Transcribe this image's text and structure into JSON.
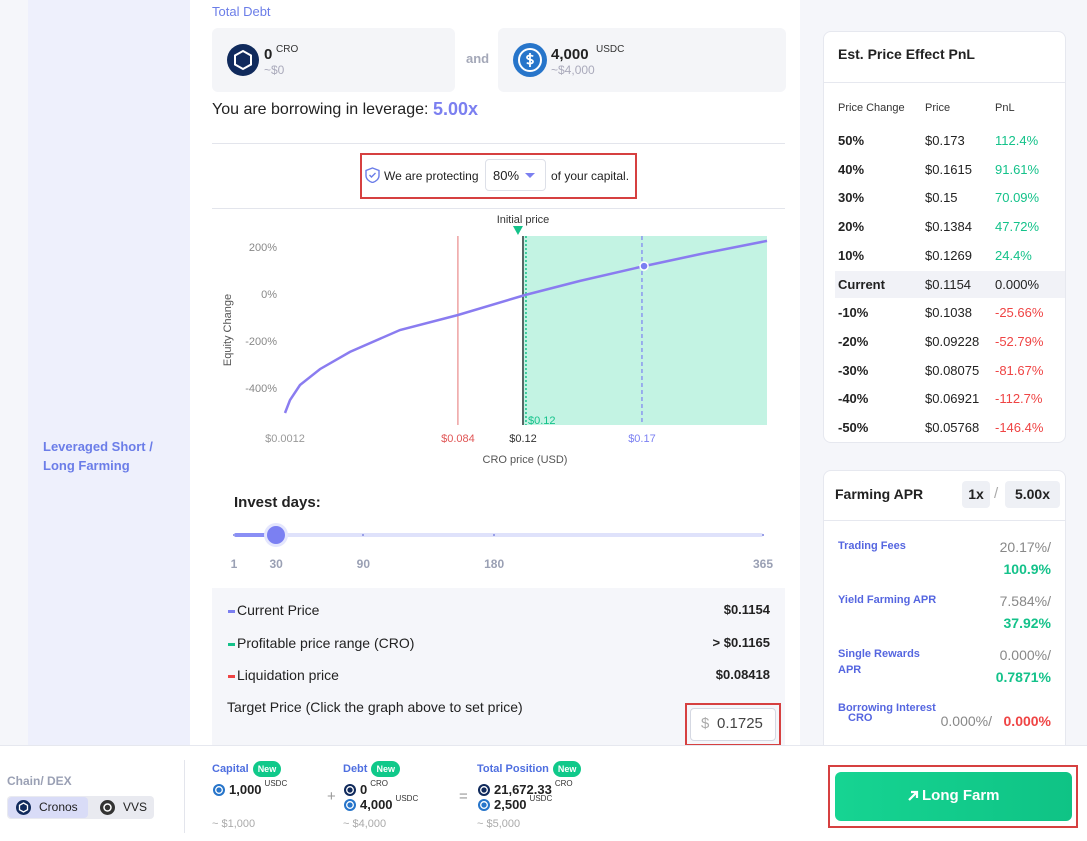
{
  "sidebar": {
    "label": "Leveraged Short / Long Farming"
  },
  "debt": {
    "title": "Total Debt",
    "joiner": "and",
    "tokens": [
      {
        "amount": "0",
        "symbol": "CRO",
        "usd": "~$0"
      },
      {
        "amount": "4,000",
        "symbol": "USDC",
        "usd": "~$4,000"
      }
    ]
  },
  "leverage": {
    "label": "You are borrowing in leverage:",
    "value": "5.00x"
  },
  "protection": {
    "prefix": "We are protecting",
    "value": "80%",
    "suffix": "of your capital."
  },
  "chart": {
    "initial_label": "Initial price",
    "marker_label": "$0.12",
    "x_label": "CRO price (USD)",
    "y_label": "Equity Change",
    "xlim": [
      0.0012,
      0.2325
    ],
    "ylim": [
      -557,
      247
    ],
    "yticks": [
      {
        "value": 200,
        "label": "200%"
      },
      {
        "value": 0,
        "label": "0%"
      },
      {
        "value": -200,
        "label": "-200%"
      },
      {
        "value": -400,
        "label": "-400%"
      }
    ],
    "xticks": [
      {
        "value": 0.0012,
        "label": "$0.0012"
      },
      {
        "value": 0.08418,
        "label": "$0.084"
      },
      {
        "value": 0.1154,
        "label": "$0.12"
      },
      {
        "value": 0.1725,
        "label": "$0.17"
      }
    ],
    "curve": {
      "x": [
        0.0012,
        0.0036,
        0.0084,
        0.018,
        0.0324,
        0.0564,
        0.0842,
        0.1164,
        0.1428,
        0.1735,
        0.2004,
        0.2325
      ],
      "y": [
        -506,
        -451,
        -387,
        -319,
        -246,
        -153,
        -89,
        -4,
        56,
        119,
        170,
        226
      ]
    },
    "colors": {
      "curve": "#8a7cf0",
      "profit": "#c3f3e3",
      "liquidation": "#e57373",
      "target": "#7b80f2"
    }
  },
  "invest": {
    "title": "Invest days:",
    "ticks": [
      1,
      30,
      90,
      180,
      365
    ],
    "value": 30
  },
  "summary": {
    "rows": [
      {
        "label": "Current Price",
        "value": "$0.1154",
        "color": "#7b7ff0"
      },
      {
        "label": "Profitable price range (CRO)",
        "value": "> $0.1165",
        "color": "#14c28a"
      },
      {
        "label": "Liquidation price",
        "value": "$0.08418",
        "color": "#ef4444"
      }
    ],
    "target": {
      "label": "Target Price (Click the graph above to set price)",
      "currency": "$",
      "value": "0.1725"
    }
  },
  "pnl": {
    "title": "Est. Price Effect PnL",
    "headers": [
      "Price Change",
      "Price",
      "PnL"
    ],
    "rows": [
      [
        "50%",
        "$0.173",
        "112.4%"
      ],
      [
        "40%",
        "$0.1615",
        "91.61%"
      ],
      [
        "30%",
        "$0.15",
        "70.09%"
      ],
      [
        "20%",
        "$0.1384",
        "47.72%"
      ],
      [
        "10%",
        "$0.1269",
        "24.4%"
      ],
      [
        "Current",
        "$0.1154",
        "0.000%"
      ],
      [
        "-10%",
        "$0.1038",
        "-25.66%"
      ],
      [
        "-20%",
        "$0.09228",
        "-52.79%"
      ],
      [
        "-30%",
        "$0.08075",
        "-81.67%"
      ],
      [
        "-40%",
        "$0.06921",
        "-112.7%"
      ],
      [
        "-50%",
        "$0.05768",
        "-146.4%"
      ]
    ]
  },
  "apr": {
    "title": "Farming APR",
    "options": [
      "1x",
      "5.00x"
    ],
    "separator": "/",
    "rows": [
      {
        "label": "Trading Fees",
        "base": "20.17%/",
        "leveraged": "100.9%"
      },
      {
        "label": "Yield Farming APR",
        "base": "7.584%/",
        "leveraged": "37.92%"
      },
      {
        "label": "Single Rewards APR",
        "base": "0.000%/",
        "leveraged": "0.7871%"
      },
      {
        "label": "Borrowing Interest",
        "sub": "CRO",
        "base": "0.000%/",
        "leveraged": "0.000%"
      }
    ]
  },
  "footer": {
    "chain_label": "Chain/ DEX",
    "chains": [
      "Cronos",
      "VVS"
    ],
    "plus": "+",
    "equals": "=",
    "button": "Long Farm",
    "columns": [
      {
        "label": "Capital",
        "badge": "New",
        "lines": [
          {
            "amount": "1,000",
            "symbol": "USDC"
          }
        ],
        "usd": "~ $1,000"
      },
      {
        "label": "Debt",
        "badge": "New",
        "lines": [
          {
            "amount": "0",
            "symbol": "CRO"
          },
          {
            "amount": "4,000",
            "symbol": "USDC"
          }
        ],
        "usd": "~ $4,000"
      },
      {
        "label": "Total Position",
        "badge": "New",
        "lines": [
          {
            "amount": "21,672.33",
            "symbol": "CRO"
          },
          {
            "amount": "2,500",
            "symbol": "USDC"
          }
        ],
        "usd": "~ $5,000"
      }
    ]
  }
}
